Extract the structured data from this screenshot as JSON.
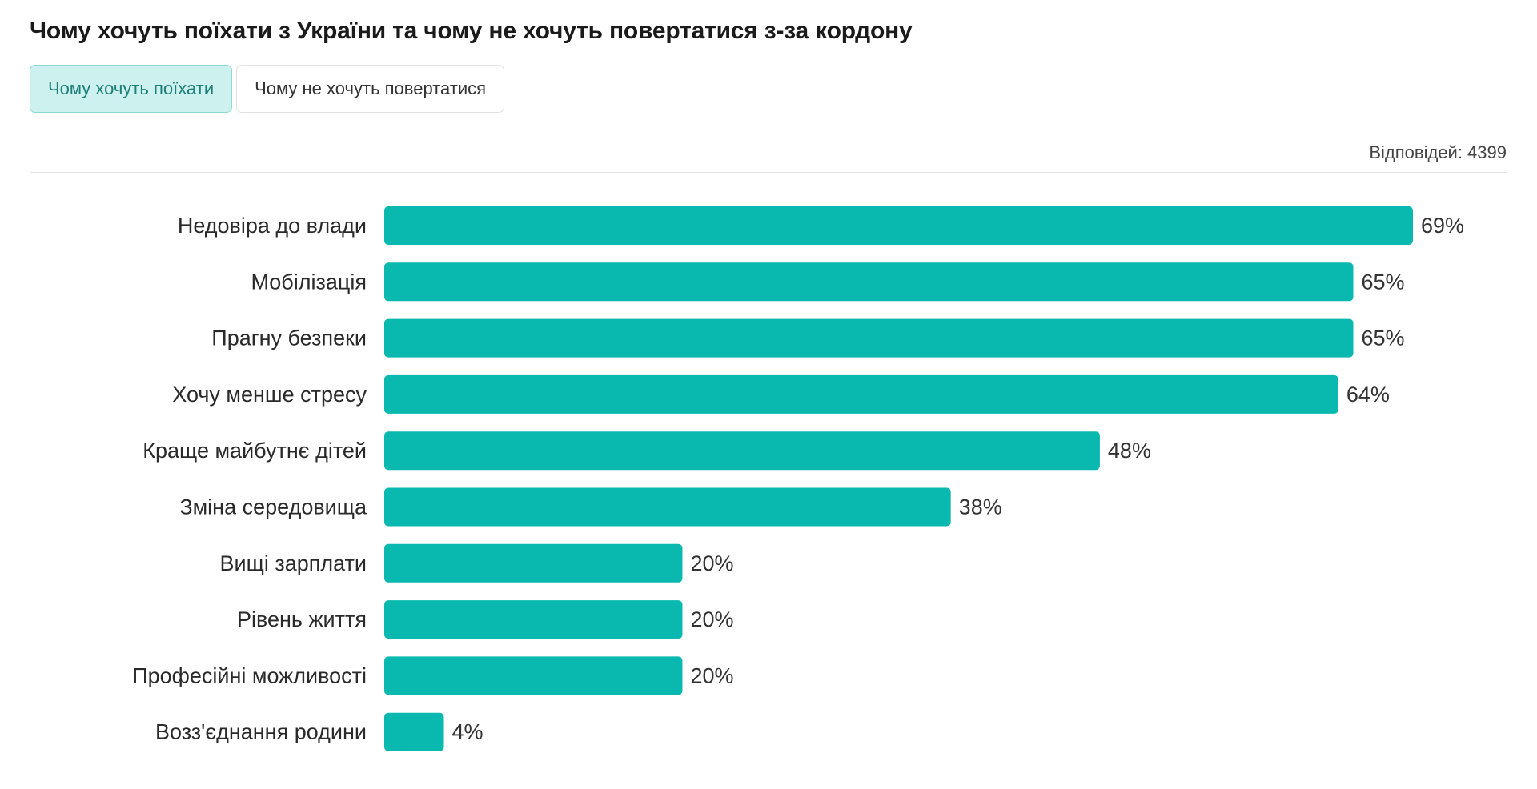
{
  "title": "Чому хочуть поїхати з України та чому не хочуть повертатися з-за кордону",
  "tabs": [
    {
      "label": "Чому хочуть поїхати",
      "active": true
    },
    {
      "label": "Чому не хочуть повертатися",
      "active": false
    }
  ],
  "responses_label": "Відповідей: 4399",
  "colors": {
    "bar": "#09b9b0",
    "tab_active_bg": "#cdf1ee",
    "tab_active_text": "#1c7f78"
  },
  "chart_data": {
    "type": "bar",
    "orientation": "horizontal",
    "title": "",
    "xlabel": "",
    "ylabel": "",
    "categories": [
      "Недовіра до влади",
      "Мобілізація",
      "Прагну безпеки",
      "Хочу менше стресу",
      "Краще майбутнє дітей",
      "Зміна середовища",
      "Вищі зарплати",
      "Рівень життя",
      "Професійні можливості",
      "Возз'єднання родини"
    ],
    "values": [
      69,
      65,
      65,
      64,
      48,
      38,
      20,
      20,
      20,
      4
    ],
    "value_labels": [
      "69%",
      "65%",
      "65%",
      "64%",
      "48%",
      "38%",
      "20%",
      "20%",
      "20%",
      "4%"
    ],
    "xlim": [
      0,
      69
    ],
    "grid": false,
    "legend": "none"
  }
}
